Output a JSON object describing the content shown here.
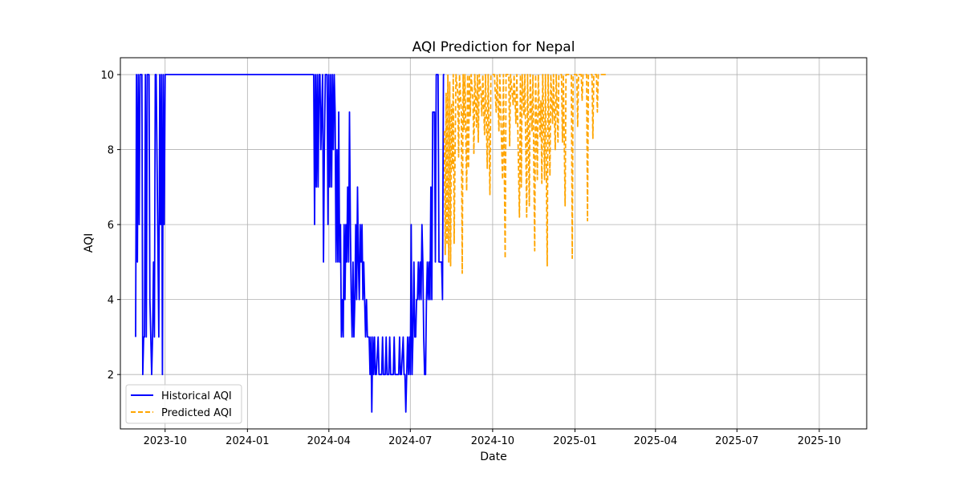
{
  "chart_data": {
    "type": "line",
    "title": "AQI Prediction for Nepal",
    "xlabel": "Date",
    "ylabel": "AQI",
    "x_range": [
      "2023-08-12",
      "2025-11-23"
    ],
    "ylim": [
      0.55,
      10.45
    ],
    "x_ticks": [
      {
        "date": "2023-10-01",
        "label": "2023-10"
      },
      {
        "date": "2024-01-01",
        "label": "2024-01"
      },
      {
        "date": "2024-04-01",
        "label": "2024-04"
      },
      {
        "date": "2024-07-01",
        "label": "2024-07"
      },
      {
        "date": "2024-10-01",
        "label": "2024-10"
      },
      {
        "date": "2025-01-01",
        "label": "2025-01"
      },
      {
        "date": "2025-04-01",
        "label": "2025-04"
      },
      {
        "date": "2025-07-01",
        "label": "2025-07"
      },
      {
        "date": "2025-10-01",
        "label": "2025-10"
      }
    ],
    "y_ticks": [
      2,
      4,
      6,
      8,
      10
    ],
    "grid": true,
    "legend_position": "lower-left",
    "series": [
      {
        "name": "Historical AQI",
        "color": "#0000ff",
        "style": "solid",
        "points": [
          [
            "2023-08-29",
            3
          ],
          [
            "2023-08-30",
            10
          ],
          [
            "2023-08-31",
            5
          ],
          [
            "2023-09-01",
            10
          ],
          [
            "2023-09-02",
            6
          ],
          [
            "2023-09-03",
            10
          ],
          [
            "2023-09-05",
            10
          ],
          [
            "2023-09-06",
            2
          ],
          [
            "2023-09-07",
            3
          ],
          [
            "2023-09-08",
            3
          ],
          [
            "2023-09-09",
            10
          ],
          [
            "2023-09-10",
            3
          ],
          [
            "2023-09-11",
            10
          ],
          [
            "2023-09-13",
            10
          ],
          [
            "2023-09-14",
            4
          ],
          [
            "2023-09-16",
            2
          ],
          [
            "2023-09-17",
            3
          ],
          [
            "2023-09-18",
            5
          ],
          [
            "2023-09-19",
            3
          ],
          [
            "2023-09-20",
            10
          ],
          [
            "2023-09-21",
            10
          ],
          [
            "2023-09-24",
            3
          ],
          [
            "2023-09-25",
            10
          ],
          [
            "2023-09-26",
            6
          ],
          [
            "2023-09-27",
            10
          ],
          [
            "2023-09-28",
            2
          ],
          [
            "2023-09-29",
            10
          ],
          [
            "2023-09-30",
            6
          ],
          [
            "2023-10-01",
            10
          ],
          [
            "2023-10-15",
            10
          ],
          [
            "2024-01-01",
            10
          ],
          [
            "2024-03-15",
            10
          ],
          [
            "2024-03-16",
            6
          ],
          [
            "2024-03-17",
            10
          ],
          [
            "2024-03-18",
            7
          ],
          [
            "2024-03-19",
            10
          ],
          [
            "2024-03-20",
            7
          ],
          [
            "2024-03-21",
            10
          ],
          [
            "2024-03-22",
            10
          ],
          [
            "2024-03-23",
            8
          ],
          [
            "2024-03-25",
            10
          ],
          [
            "2024-03-26",
            5
          ],
          [
            "2024-03-27",
            8
          ],
          [
            "2024-03-28",
            10
          ],
          [
            "2024-03-30",
            10
          ],
          [
            "2024-03-31",
            6
          ],
          [
            "2024-04-01",
            10
          ],
          [
            "2024-04-02",
            7
          ],
          [
            "2024-04-03",
            10
          ],
          [
            "2024-04-04",
            7
          ],
          [
            "2024-04-05",
            10
          ],
          [
            "2024-04-06",
            8
          ],
          [
            "2024-04-07",
            10
          ],
          [
            "2024-04-08",
            9
          ],
          [
            "2024-04-09",
            5
          ],
          [
            "2024-04-10",
            8
          ],
          [
            "2024-04-11",
            5
          ],
          [
            "2024-04-12",
            9
          ],
          [
            "2024-04-13",
            5
          ],
          [
            "2024-04-14",
            6
          ],
          [
            "2024-04-15",
            3
          ],
          [
            "2024-04-16",
            4
          ],
          [
            "2024-04-17",
            3
          ],
          [
            "2024-04-18",
            6
          ],
          [
            "2024-04-19",
            4
          ],
          [
            "2024-04-20",
            6
          ],
          [
            "2024-04-21",
            5
          ],
          [
            "2024-04-22",
            7
          ],
          [
            "2024-04-23",
            5
          ],
          [
            "2024-04-24",
            9
          ],
          [
            "2024-04-25",
            6
          ],
          [
            "2024-04-26",
            4
          ],
          [
            "2024-04-27",
            3
          ],
          [
            "2024-04-28",
            5
          ],
          [
            "2024-04-29",
            3
          ],
          [
            "2024-04-30",
            4
          ],
          [
            "2024-05-01",
            6
          ],
          [
            "2024-05-02",
            4
          ],
          [
            "2024-05-03",
            7
          ],
          [
            "2024-05-04",
            5
          ],
          [
            "2024-05-05",
            4
          ],
          [
            "2024-05-06",
            6
          ],
          [
            "2024-05-07",
            5
          ],
          [
            "2024-05-08",
            6
          ],
          [
            "2024-05-09",
            4
          ],
          [
            "2024-05-10",
            5
          ],
          [
            "2024-05-11",
            4
          ],
          [
            "2024-05-12",
            3
          ],
          [
            "2024-05-13",
            4
          ],
          [
            "2024-05-14",
            3
          ],
          [
            "2024-05-15",
            3
          ],
          [
            "2024-05-16",
            3
          ],
          [
            "2024-05-17",
            2
          ],
          [
            "2024-05-18",
            3
          ],
          [
            "2024-05-19",
            1
          ],
          [
            "2024-05-20",
            3
          ],
          [
            "2024-05-21",
            2
          ],
          [
            "2024-05-22",
            3
          ],
          [
            "2024-05-23",
            2
          ],
          [
            "2024-05-24",
            2
          ],
          [
            "2024-05-26",
            3
          ],
          [
            "2024-05-27",
            2
          ],
          [
            "2024-05-28",
            2
          ],
          [
            "2024-05-30",
            2
          ],
          [
            "2024-05-31",
            3
          ],
          [
            "2024-06-01",
            2
          ],
          [
            "2024-06-03",
            2
          ],
          [
            "2024-06-04",
            3
          ],
          [
            "2024-06-05",
            2
          ],
          [
            "2024-06-07",
            2
          ],
          [
            "2024-06-08",
            3
          ],
          [
            "2024-06-09",
            2
          ],
          [
            "2024-06-12",
            2
          ],
          [
            "2024-06-13",
            3
          ],
          [
            "2024-06-14",
            2
          ],
          [
            "2024-06-17",
            2
          ],
          [
            "2024-06-18",
            2
          ],
          [
            "2024-06-19",
            3
          ],
          [
            "2024-06-20",
            2
          ],
          [
            "2024-06-21",
            2
          ],
          [
            "2024-06-23",
            3
          ],
          [
            "2024-06-24",
            2
          ],
          [
            "2024-06-25",
            2
          ],
          [
            "2024-06-26",
            1
          ],
          [
            "2024-06-27",
            2
          ],
          [
            "2024-06-28",
            3
          ],
          [
            "2024-06-29",
            2
          ],
          [
            "2024-06-30",
            3
          ],
          [
            "2024-07-01",
            2
          ],
          [
            "2024-07-02",
            6
          ],
          [
            "2024-07-03",
            2
          ],
          [
            "2024-07-04",
            3
          ],
          [
            "2024-07-05",
            5
          ],
          [
            "2024-07-06",
            3
          ],
          [
            "2024-07-07",
            3
          ],
          [
            "2024-07-08",
            4
          ],
          [
            "2024-07-09",
            4
          ],
          [
            "2024-07-10",
            5
          ],
          [
            "2024-07-11",
            4
          ],
          [
            "2024-07-12",
            5
          ],
          [
            "2024-07-13",
            4
          ],
          [
            "2024-07-14",
            6
          ],
          [
            "2024-07-15",
            5
          ],
          [
            "2024-07-16",
            3
          ],
          [
            "2024-07-17",
            2
          ],
          [
            "2024-07-18",
            2
          ],
          [
            "2024-07-19",
            4
          ],
          [
            "2024-07-20",
            5
          ],
          [
            "2024-07-21",
            4
          ],
          [
            "2024-07-22",
            5
          ],
          [
            "2024-07-23",
            4
          ],
          [
            "2024-07-24",
            7
          ],
          [
            "2024-07-25",
            4
          ],
          [
            "2024-07-26",
            9
          ],
          [
            "2024-07-28",
            9
          ],
          [
            "2024-07-29",
            5
          ],
          [
            "2024-07-30",
            10
          ],
          [
            "2024-08-01",
            10
          ],
          [
            "2024-08-02",
            5
          ],
          [
            "2024-08-05",
            5
          ],
          [
            "2024-08-06",
            4
          ],
          [
            "2024-08-07",
            10
          ],
          [
            "2024-08-08",
            10
          ]
        ]
      },
      {
        "name": "Predicted AQI",
        "color": "#ffa500",
        "style": "dashed",
        "points": [
          [
            "2024-08-08",
            8.5
          ],
          [
            "2024-08-09",
            5.2
          ],
          [
            "2024-08-10",
            9.5
          ],
          [
            "2024-08-11",
            5.5
          ],
          [
            "2024-08-12",
            10
          ],
          [
            "2024-08-13",
            5
          ],
          [
            "2024-08-14",
            9.8
          ],
          [
            "2024-08-15",
            4.9
          ],
          [
            "2024-08-16",
            9.2
          ],
          [
            "2024-08-17",
            7.5
          ],
          [
            "2024-08-18",
            10
          ],
          [
            "2024-08-19",
            5.5
          ],
          [
            "2024-08-20",
            8
          ],
          [
            "2024-08-21",
            10
          ],
          [
            "2024-08-23",
            9.5
          ],
          [
            "2024-08-24",
            7.8
          ],
          [
            "2024-08-25",
            10
          ],
          [
            "2024-08-27",
            9
          ],
          [
            "2024-08-28",
            4.7
          ],
          [
            "2024-08-29",
            10
          ],
          [
            "2024-08-30",
            8.5
          ],
          [
            "2024-08-31",
            10
          ],
          [
            "2024-09-02",
            6.9
          ],
          [
            "2024-09-03",
            10
          ],
          [
            "2024-09-04",
            7.5
          ],
          [
            "2024-09-05",
            10
          ],
          [
            "2024-09-06",
            8.9
          ],
          [
            "2024-09-07",
            10
          ],
          [
            "2024-09-09",
            9.3
          ],
          [
            "2024-09-10",
            7.9
          ],
          [
            "2024-09-11",
            10
          ],
          [
            "2024-09-13",
            8.6
          ],
          [
            "2024-09-14",
            10
          ],
          [
            "2024-09-15",
            8.2
          ],
          [
            "2024-09-16",
            10
          ],
          [
            "2024-09-18",
            9.5
          ],
          [
            "2024-09-19",
            8.9
          ],
          [
            "2024-09-20",
            10
          ],
          [
            "2024-09-22",
            8.4
          ],
          [
            "2024-09-23",
            10
          ],
          [
            "2024-09-25",
            7.5
          ],
          [
            "2024-09-26",
            10
          ],
          [
            "2024-09-28",
            6.8
          ],
          [
            "2024-09-29",
            10
          ],
          [
            "2024-10-03",
            10
          ],
          [
            "2024-10-05",
            9
          ],
          [
            "2024-10-06",
            10
          ],
          [
            "2024-10-08",
            8.5
          ],
          [
            "2024-10-09",
            10
          ],
          [
            "2024-10-12",
            7.2
          ],
          [
            "2024-10-13",
            10
          ],
          [
            "2024-10-15",
            5.1
          ],
          [
            "2024-10-16",
            10
          ],
          [
            "2024-10-19",
            10
          ],
          [
            "2024-10-20",
            8.1
          ],
          [
            "2024-10-21",
            10
          ],
          [
            "2024-10-24",
            9.2
          ],
          [
            "2024-10-25",
            10
          ],
          [
            "2024-10-27",
            8.7
          ],
          [
            "2024-10-28",
            10
          ],
          [
            "2024-10-31",
            6.2
          ],
          [
            "2024-11-01",
            10
          ],
          [
            "2024-11-02",
            7
          ],
          [
            "2024-11-03",
            10
          ],
          [
            "2024-11-05",
            8.9
          ],
          [
            "2024-11-06",
            10
          ],
          [
            "2024-11-08",
            6.2
          ],
          [
            "2024-11-09",
            10
          ],
          [
            "2024-11-11",
            6.5
          ],
          [
            "2024-11-12",
            10
          ],
          [
            "2024-11-14",
            8.5
          ],
          [
            "2024-11-15",
            10
          ],
          [
            "2024-11-17",
            5.3
          ],
          [
            "2024-11-18",
            10
          ],
          [
            "2024-11-20",
            7.2
          ],
          [
            "2024-11-21",
            10
          ],
          [
            "2024-11-23",
            8.3
          ],
          [
            "2024-11-24",
            9.3
          ],
          [
            "2024-11-25",
            7.1
          ],
          [
            "2024-11-26",
            10
          ],
          [
            "2024-11-28",
            7.2
          ],
          [
            "2024-11-29",
            10
          ],
          [
            "2024-12-01",
            4.9
          ],
          [
            "2024-12-02",
            10
          ],
          [
            "2024-12-04",
            7.3
          ],
          [
            "2024-12-05",
            10
          ],
          [
            "2024-12-07",
            8.7
          ],
          [
            "2024-12-08",
            10
          ],
          [
            "2024-12-10",
            8
          ],
          [
            "2024-12-11",
            10
          ],
          [
            "2024-12-13",
            8.2
          ],
          [
            "2024-12-14",
            10
          ],
          [
            "2024-12-17",
            10
          ],
          [
            "2024-12-18",
            8.2
          ],
          [
            "2024-12-19",
            10
          ],
          [
            "2024-12-21",
            6.5
          ],
          [
            "2024-12-22",
            10
          ],
          [
            "2024-12-28",
            10
          ],
          [
            "2024-12-29",
            5.1
          ],
          [
            "2024-12-30",
            10
          ],
          [
            "2025-01-03",
            10
          ],
          [
            "2025-01-04",
            8.6
          ],
          [
            "2025-01-05",
            10
          ],
          [
            "2025-01-08",
            10
          ],
          [
            "2025-01-09",
            9.3
          ],
          [
            "2025-01-10",
            10
          ],
          [
            "2025-01-14",
            10
          ],
          [
            "2025-01-15",
            6.1
          ],
          [
            "2025-01-16",
            10
          ],
          [
            "2025-01-20",
            10
          ],
          [
            "2025-01-21",
            8.3
          ],
          [
            "2025-01-22",
            10
          ],
          [
            "2025-01-25",
            10
          ],
          [
            "2025-01-26",
            9
          ],
          [
            "2025-01-27",
            10
          ],
          [
            "2025-02-05",
            10
          ]
        ]
      }
    ]
  }
}
